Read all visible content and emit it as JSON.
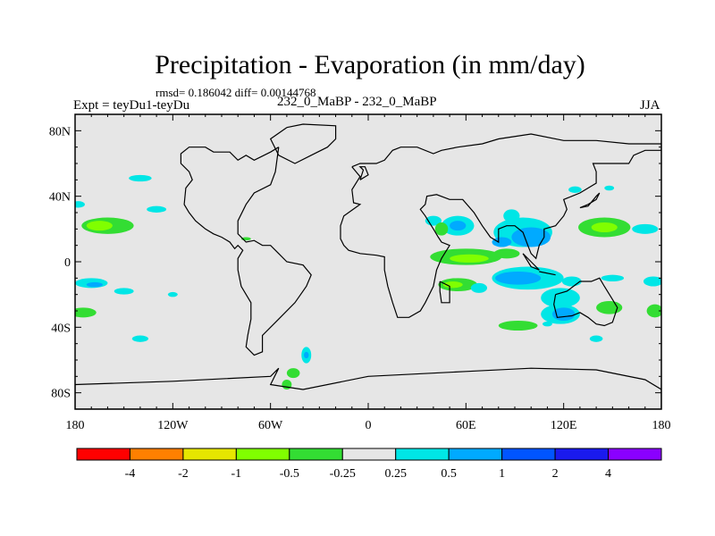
{
  "chart_data": {
    "type": "heatmap",
    "title": "Precipitation - Evaporation (in mm/day)",
    "stats": "rmsd= 0.186042  diff= 0.00144768",
    "left_label": "Expt = teyDu1-teyDu",
    "center_label": "232_0_MaBP - 232_0_MaBP",
    "right_label": "JJA",
    "xlim": [
      -180,
      180
    ],
    "ylim": [
      -90,
      90
    ],
    "x_ticks": [
      {
        "value": -180,
        "label": "180"
      },
      {
        "value": -120,
        "label": "120W"
      },
      {
        "value": -60,
        "label": "60W"
      },
      {
        "value": 0,
        "label": "0"
      },
      {
        "value": 60,
        "label": "60E"
      },
      {
        "value": 120,
        "label": "120E"
      },
      {
        "value": 180,
        "label": "180"
      }
    ],
    "y_ticks": [
      {
        "value": 80,
        "label": "80N"
      },
      {
        "value": 40,
        "label": "40N"
      },
      {
        "value": 0,
        "label": "0"
      },
      {
        "value": -40,
        "label": "40S"
      },
      {
        "value": -80,
        "label": "80S"
      }
    ],
    "colorbar": {
      "colors": [
        "#ff0000",
        "#ff8000",
        "#e6e600",
        "#80ff00",
        "#33dd33",
        "#e6e6e6",
        "#00e6e6",
        "#00aaff",
        "#0055ff",
        "#1a1aee",
        "#8a00ff"
      ],
      "labels": [
        "-4",
        "-2",
        "-1",
        "-0.5",
        "-0.25",
        "0.25",
        "0.5",
        "1",
        "2",
        "4"
      ]
    },
    "field_patches": [
      {
        "lon": -160,
        "lat": 22,
        "rx": 16,
        "ry": 5,
        "color": "#33dd33"
      },
      {
        "lon": -165,
        "lat": 22,
        "rx": 8,
        "ry": 3,
        "color": "#80ff00"
      },
      {
        "lon": -140,
        "lat": 51,
        "rx": 7,
        "ry": 2,
        "color": "#00e6e6"
      },
      {
        "lon": -130,
        "lat": 32,
        "rx": 6,
        "ry": 2,
        "color": "#00e6e6"
      },
      {
        "lon": -178,
        "lat": 35,
        "rx": 4,
        "ry": 2,
        "color": "#00e6e6"
      },
      {
        "lon": -170,
        "lat": -13,
        "rx": 10,
        "ry": 3,
        "color": "#00e6e6"
      },
      {
        "lon": -168,
        "lat": -14,
        "rx": 5,
        "ry": 1.5,
        "color": "#00aaff"
      },
      {
        "lon": -150,
        "lat": -18,
        "rx": 6,
        "ry": 2,
        "color": "#00e6e6"
      },
      {
        "lon": -175,
        "lat": -31,
        "rx": 8,
        "ry": 3,
        "color": "#33dd33"
      },
      {
        "lon": -140,
        "lat": -47,
        "rx": 5,
        "ry": 2,
        "color": "#00e6e6"
      },
      {
        "lon": -120,
        "lat": -20,
        "rx": 3,
        "ry": 1.5,
        "color": "#00e6e6"
      },
      {
        "lon": -75,
        "lat": 14,
        "rx": 3,
        "ry": 1,
        "color": "#33dd33"
      },
      {
        "lon": -38,
        "lat": -57,
        "rx": 3,
        "ry": 5,
        "color": "#00e6e6"
      },
      {
        "lon": -38,
        "lat": -57,
        "rx": 1.5,
        "ry": 2,
        "color": "#00aaff"
      },
      {
        "lon": -46,
        "lat": -68,
        "rx": 4,
        "ry": 3,
        "color": "#33dd33"
      },
      {
        "lon": -50,
        "lat": -75,
        "rx": 3,
        "ry": 3,
        "color": "#33dd33"
      },
      {
        "lon": 40,
        "lat": 25,
        "rx": 5,
        "ry": 3,
        "color": "#00e6e6"
      },
      {
        "lon": 55,
        "lat": 22,
        "rx": 10,
        "ry": 6,
        "color": "#00e6e6"
      },
      {
        "lon": 55,
        "lat": 22,
        "rx": 5,
        "ry": 3,
        "color": "#00aaff"
      },
      {
        "lon": 45,
        "lat": 20,
        "rx": 4,
        "ry": 4,
        "color": "#33dd33"
      },
      {
        "lon": 95,
        "lat": 18,
        "rx": 18,
        "ry": 9,
        "color": "#00e6e6"
      },
      {
        "lon": 100,
        "lat": 15,
        "rx": 12,
        "ry": 6,
        "color": "#00aaff"
      },
      {
        "lon": 82,
        "lat": 12,
        "rx": 6,
        "ry": 3,
        "color": "#00aaff"
      },
      {
        "lon": 88,
        "lat": 28,
        "rx": 5,
        "ry": 4,
        "color": "#00e6e6"
      },
      {
        "lon": 60,
        "lat": 3,
        "rx": 22,
        "ry": 5,
        "color": "#33dd33"
      },
      {
        "lon": 62,
        "lat": 2,
        "rx": 12,
        "ry": 2.5,
        "color": "#80ff00"
      },
      {
        "lon": 85,
        "lat": 5,
        "rx": 8,
        "ry": 3,
        "color": "#33dd33"
      },
      {
        "lon": 145,
        "lat": 21,
        "rx": 16,
        "ry": 6,
        "color": "#33dd33"
      },
      {
        "lon": 145,
        "lat": 21,
        "rx": 8,
        "ry": 3,
        "color": "#80ff00"
      },
      {
        "lon": 170,
        "lat": 20,
        "rx": 8,
        "ry": 3,
        "color": "#00e6e6"
      },
      {
        "lon": 127,
        "lat": 44,
        "rx": 4,
        "ry": 2,
        "color": "#00e6e6"
      },
      {
        "lon": 148,
        "lat": 45,
        "rx": 3,
        "ry": 1.5,
        "color": "#00e6e6"
      },
      {
        "lon": 98,
        "lat": -10,
        "rx": 22,
        "ry": 7,
        "color": "#00e6e6"
      },
      {
        "lon": 92,
        "lat": -10,
        "rx": 14,
        "ry": 4,
        "color": "#00aaff"
      },
      {
        "lon": 55,
        "lat": -14,
        "rx": 12,
        "ry": 4,
        "color": "#33dd33"
      },
      {
        "lon": 52,
        "lat": -14,
        "rx": 6,
        "ry": 2,
        "color": "#80ff00"
      },
      {
        "lon": 68,
        "lat": -16,
        "rx": 5,
        "ry": 3,
        "color": "#00e6e6"
      },
      {
        "lon": 125,
        "lat": -12,
        "rx": 6,
        "ry": 3,
        "color": "#00e6e6"
      },
      {
        "lon": 150,
        "lat": -10,
        "rx": 7,
        "ry": 2,
        "color": "#00e6e6"
      },
      {
        "lon": 175,
        "lat": -12,
        "rx": 6,
        "ry": 3,
        "color": "#00e6e6"
      },
      {
        "lon": 118,
        "lat": -22,
        "rx": 12,
        "ry": 6,
        "color": "#00e6e6"
      },
      {
        "lon": 118,
        "lat": -32,
        "rx": 12,
        "ry": 6,
        "color": "#00e6e6"
      },
      {
        "lon": 120,
        "lat": -32,
        "rx": 7,
        "ry": 4,
        "color": "#00aaff"
      },
      {
        "lon": 148,
        "lat": -28,
        "rx": 8,
        "ry": 4,
        "color": "#33dd33"
      },
      {
        "lon": 176,
        "lat": -30,
        "rx": 5,
        "ry": 4,
        "color": "#33dd33"
      },
      {
        "lon": 92,
        "lat": -39,
        "rx": 12,
        "ry": 3,
        "color": "#33dd33"
      },
      {
        "lon": 140,
        "lat": -47,
        "rx": 4,
        "ry": 2,
        "color": "#00e6e6"
      },
      {
        "lon": 110,
        "lat": -38,
        "rx": 3,
        "ry": 1.5,
        "color": "#00e6e6"
      }
    ],
    "coastlines": [
      [
        [
          -50,
          82
        ],
        [
          -40,
          84
        ],
        [
          -20,
          83
        ],
        [
          -20,
          75
        ],
        [
          -25,
          70
        ],
        [
          -35,
          65
        ],
        [
          -45,
          60
        ],
        [
          -55,
          65
        ],
        [
          -60,
          75
        ],
        [
          -50,
          82
        ]
      ],
      [
        [
          -55,
          70
        ],
        [
          -60,
          67
        ],
        [
          -70,
          62
        ],
        [
          -75,
          65
        ],
        [
          -80,
          62
        ],
        [
          -85,
          67
        ],
        [
          -95,
          67
        ],
        [
          -100,
          70
        ],
        [
          -110,
          70
        ],
        [
          -115,
          66
        ],
        [
          -115,
          60
        ],
        [
          -110,
          55
        ],
        [
          -108,
          50
        ],
        [
          -112,
          45
        ],
        [
          -113,
          35
        ],
        [
          -110,
          30
        ],
        [
          -106,
          25
        ],
        [
          -100,
          20
        ],
        [
          -95,
          17
        ],
        [
          -90,
          15
        ],
        [
          -85,
          12
        ],
        [
          -82,
          8
        ],
        [
          -80,
          10
        ],
        [
          -77,
          7
        ],
        [
          -80,
          2
        ],
        [
          -80,
          -5
        ],
        [
          -78,
          -15
        ],
        [
          -72,
          -25
        ],
        [
          -72,
          -35
        ],
        [
          -74,
          -45
        ],
        [
          -75,
          -52
        ],
        [
          -70,
          -57
        ],
        [
          -65,
          -55
        ],
        [
          -65,
          -45
        ],
        [
          -55,
          -35
        ],
        [
          -45,
          -25
        ],
        [
          -38,
          -15
        ],
        [
          -35,
          -8
        ],
        [
          -40,
          -2
        ],
        [
          -50,
          0
        ],
        [
          -55,
          5
        ],
        [
          -60,
          10
        ],
        [
          -65,
          10
        ],
        [
          -70,
          13
        ],
        [
          -75,
          12
        ],
        [
          -80,
          17
        ],
        [
          -80,
          25
        ],
        [
          -75,
          35
        ],
        [
          -70,
          42
        ],
        [
          -60,
          47
        ],
        [
          -57,
          55
        ],
        [
          -55,
          70
        ]
      ],
      [
        [
          -10,
          58
        ],
        [
          -5,
          52
        ],
        [
          -10,
          44
        ],
        [
          -9,
          36
        ],
        [
          -5,
          35
        ],
        [
          -15,
          28
        ],
        [
          -17,
          22
        ],
        [
          -17,
          14
        ],
        [
          -15,
          10
        ],
        [
          -12,
          7
        ],
        [
          -5,
          5
        ],
        [
          5,
          4
        ],
        [
          10,
          3
        ],
        [
          10,
          -5
        ],
        [
          12,
          -15
        ],
        [
          15,
          -25
        ],
        [
          18,
          -34
        ],
        [
          25,
          -34
        ],
        [
          32,
          -30
        ],
        [
          35,
          -25
        ],
        [
          40,
          -15
        ],
        [
          42,
          -5
        ],
        [
          45,
          2
        ],
        [
          50,
          10
        ],
        [
          45,
          12
        ],
        [
          43,
          15
        ],
        [
          40,
          20
        ],
        [
          35,
          28
        ],
        [
          32,
          32
        ],
        [
          35,
          35
        ],
        [
          36,
          40
        ],
        [
          42,
          41
        ],
        [
          50,
          38
        ],
        [
          58,
          38
        ],
        [
          65,
          30
        ],
        [
          70,
          22
        ],
        [
          75,
          15
        ],
        [
          80,
          12
        ],
        [
          80,
          20
        ],
        [
          85,
          22
        ],
        [
          90,
          22
        ],
        [
          95,
          18
        ],
        [
          98,
          10
        ],
        [
          100,
          5
        ],
        [
          103,
          2
        ],
        [
          105,
          10
        ],
        [
          108,
          15
        ],
        [
          108,
          20
        ],
        [
          115,
          22
        ],
        [
          120,
          28
        ],
        [
          122,
          32
        ],
        [
          120,
          38
        ],
        [
          125,
          40
        ],
        [
          130,
          42
        ],
        [
          140,
          48
        ],
        [
          140,
          55
        ],
        [
          138,
          60
        ],
        [
          150,
          60
        ],
        [
          160,
          60
        ],
        [
          163,
          65
        ],
        [
          170,
          68
        ],
        [
          180,
          68
        ],
        [
          180,
          72
        ],
        [
          160,
          72
        ],
        [
          140,
          74
        ],
        [
          120,
          74
        ],
        [
          100,
          78
        ],
        [
          80,
          75
        ],
        [
          70,
          72
        ],
        [
          55,
          70
        ],
        [
          45,
          68
        ],
        [
          40,
          66
        ],
        [
          30,
          70
        ],
        [
          20,
          70
        ],
        [
          15,
          68
        ],
        [
          10,
          62
        ],
        [
          5,
          60
        ],
        [
          -5,
          60
        ],
        [
          -10,
          58
        ]
      ],
      [
        [
          115,
          -20
        ],
        [
          122,
          -18
        ],
        [
          130,
          -12
        ],
        [
          137,
          -12
        ],
        [
          142,
          -10
        ],
        [
          145,
          -15
        ],
        [
          150,
          -23
        ],
        [
          153,
          -28
        ],
        [
          150,
          -37
        ],
        [
          145,
          -39
        ],
        [
          140,
          -38
        ],
        [
          135,
          -34
        ],
        [
          130,
          -31
        ],
        [
          125,
          -33
        ],
        [
          116,
          -34
        ],
        [
          114,
          -26
        ],
        [
          115,
          -20
        ]
      ],
      [
        [
          44,
          -12
        ],
        [
          50,
          -15
        ],
        [
          50,
          -25
        ],
        [
          45,
          -25
        ],
        [
          44,
          -18
        ],
        [
          44,
          -12
        ]
      ],
      [
        [
          95,
          5
        ],
        [
          100,
          0
        ],
        [
          105,
          -5
        ],
        [
          100,
          -3
        ],
        [
          95,
          5
        ]
      ],
      [
        [
          105,
          -6
        ],
        [
          115,
          -8
        ],
        [
          110,
          -7
        ],
        [
          105,
          -6
        ]
      ],
      [
        [
          130,
          33
        ],
        [
          135,
          35
        ],
        [
          140,
          38
        ],
        [
          142,
          42
        ],
        [
          140,
          40
        ],
        [
          135,
          34
        ],
        [
          130,
          33
        ]
      ],
      [
        [
          -5,
          50
        ],
        [
          -3,
          56
        ],
        [
          -5,
          58
        ],
        [
          -2,
          58
        ],
        [
          0,
          53
        ],
        [
          -5,
          50
        ]
      ],
      [
        [
          -180,
          -75
        ],
        [
          -120,
          -73
        ],
        [
          -60,
          -70
        ],
        [
          -55,
          -65
        ],
        [
          -60,
          -75
        ],
        [
          -40,
          -78
        ],
        [
          0,
          -70
        ],
        [
          60,
          -67
        ],
        [
          100,
          -65
        ],
        [
          140,
          -66
        ],
        [
          170,
          -72
        ],
        [
          180,
          -78
        ],
        [
          180,
          -90
        ],
        [
          -180,
          -90
        ],
        [
          -180,
          -75
        ]
      ]
    ]
  }
}
